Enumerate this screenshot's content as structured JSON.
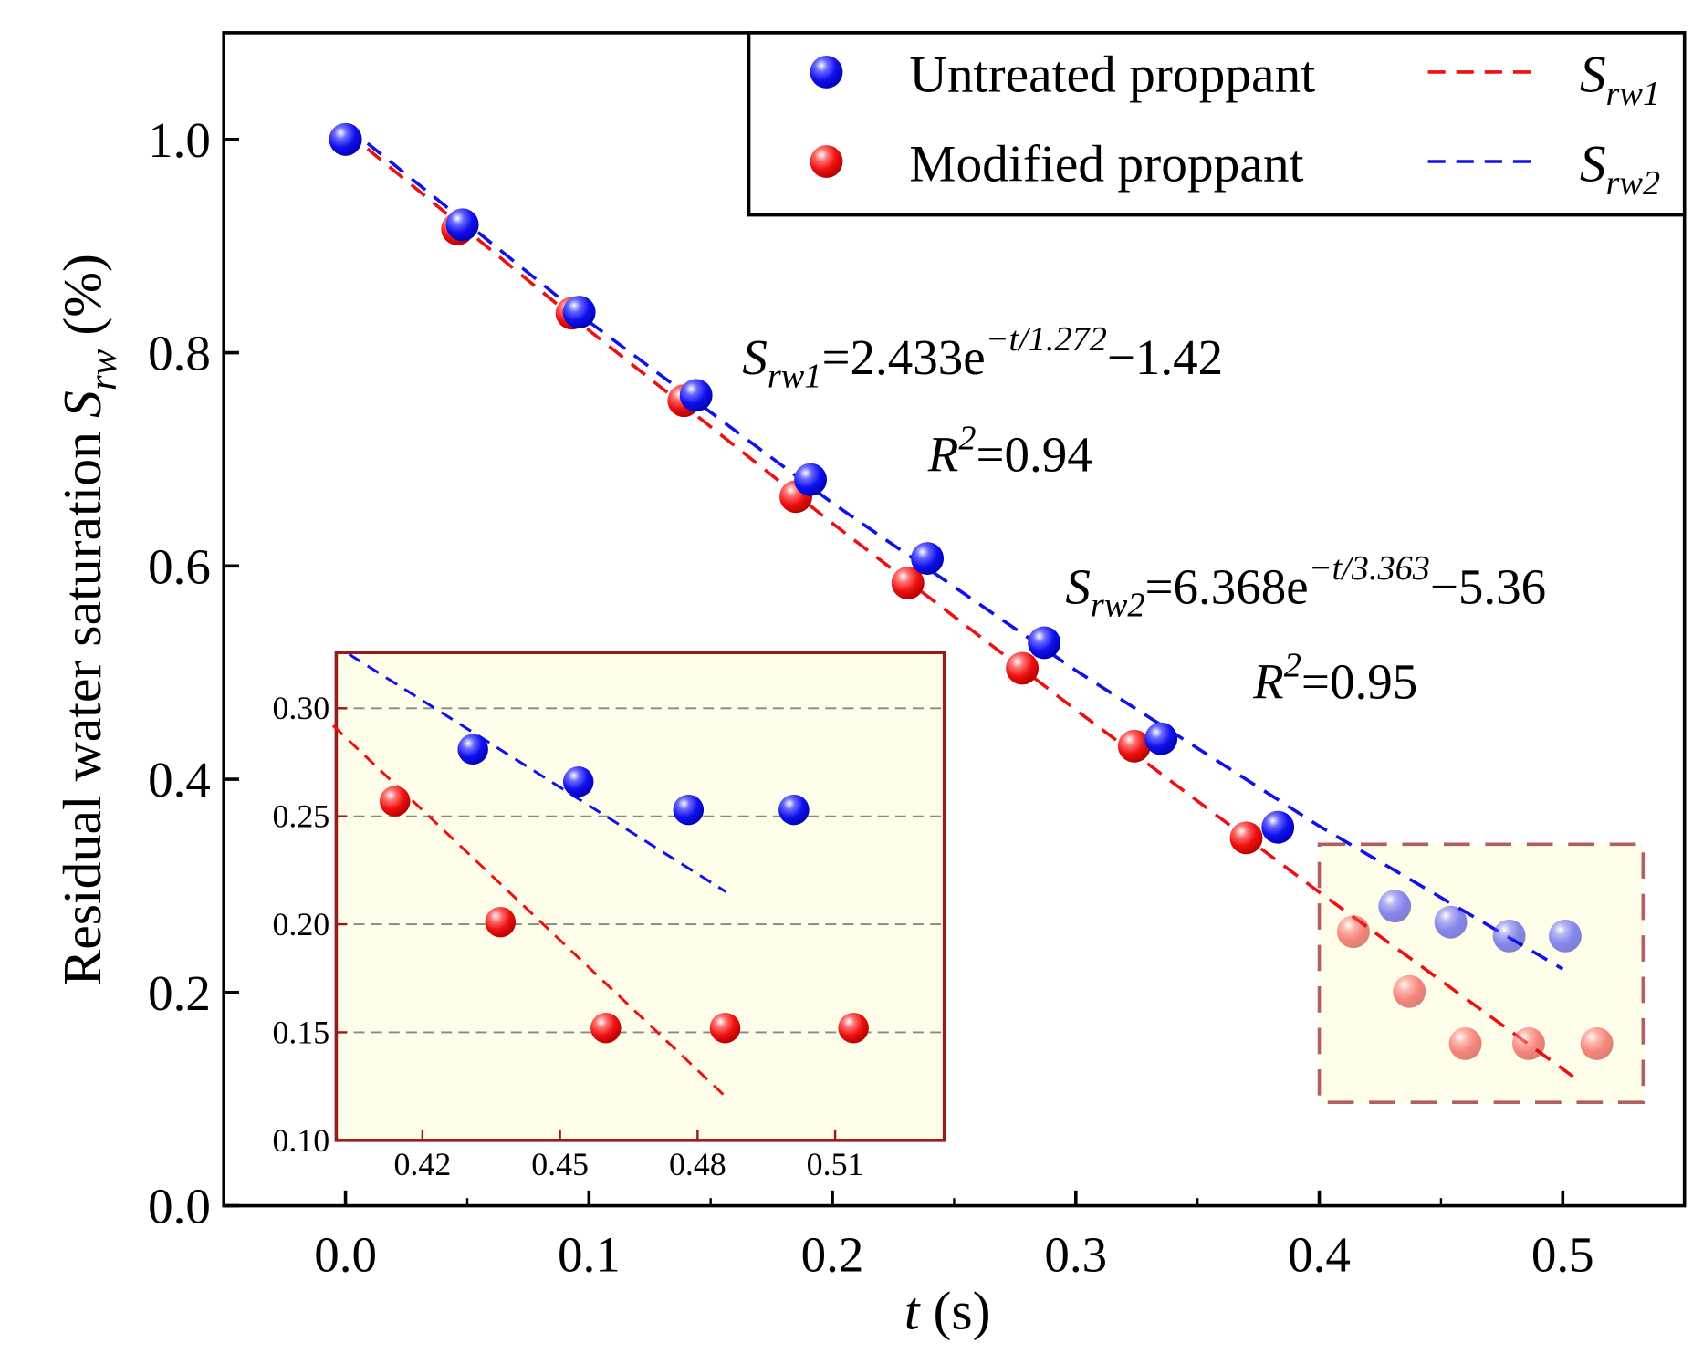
{
  "chart_data": {
    "type": "scatter",
    "xlabel": {
      "var": "t",
      "unit": " (s)"
    },
    "ylabel": {
      "main": "Residual water saturation ",
      "var": "S",
      "sub": "rw",
      "unit": " (%)"
    },
    "xlim": [
      -0.05,
      0.55
    ],
    "ylim": [
      0,
      1.1
    ],
    "xticks": [
      "0.0",
      "0.1",
      "0.2",
      "0.3",
      "0.4",
      "0.5"
    ],
    "yticks": [
      "0.0",
      "0.2",
      "0.4",
      "0.6",
      "0.8",
      "1.0"
    ],
    "series": [
      {
        "name": "Untreated proppant",
        "color": "#1010ee",
        "x": [
          0,
          0.048,
          0.096,
          0.144,
          0.191,
          0.239,
          0.287,
          0.335,
          0.383,
          0.431,
          0.454,
          0.478,
          0.501
        ],
        "y": [
          1.0,
          0.92,
          0.838,
          0.76,
          0.681,
          0.607,
          0.528,
          0.438,
          0.355,
          0.281,
          0.266,
          0.253,
          0.253
        ]
      },
      {
        "name": "Modified proppant",
        "color": "#ee1010",
        "x": [
          0,
          0.046,
          0.093,
          0.139,
          0.185,
          0.231,
          0.278,
          0.324,
          0.37,
          0.414,
          0.437,
          0.46,
          0.486,
          0.514
        ],
        "y": [
          1.0,
          0.916,
          0.837,
          0.755,
          0.665,
          0.584,
          0.504,
          0.431,
          0.345,
          0.257,
          0.201,
          0.152,
          0.152,
          0.152
        ]
      }
    ],
    "fits": [
      {
        "name": "S_rw1",
        "label": "S",
        "sub": "rw1",
        "color": "#ee1010",
        "x": [
          0,
          0.1,
          0.2,
          0.3,
          0.4,
          0.505
        ],
        "y": [
          1.008,
          0.821,
          0.64,
          0.465,
          0.294,
          0.12
        ]
      },
      {
        "name": "S_rw2",
        "label": "S",
        "sub": "rw2",
        "color": "#1010ee",
        "x": [
          0,
          0.1,
          0.2,
          0.3,
          0.4,
          0.5
        ],
        "y": [
          1.013,
          0.829,
          0.659,
          0.502,
          0.356,
          0.222
        ]
      }
    ],
    "annotations": {
      "eq1": {
        "S": "S",
        "sub": "rw1",
        "body": "=2.433e",
        "exp": "−t/1.272",
        "tail": "−1.42",
        "r": "R",
        "r_exp": "2",
        "r_val": "=0.94"
      },
      "eq2": {
        "S": "S",
        "sub": "rw2",
        "body": "=6.368e",
        "exp": "−t/3.363",
        "tail": "−5.36",
        "r": "R",
        "r_exp": "2",
        "r_val": "=0.95"
      }
    },
    "zoom_region": {
      "x": [
        0.4,
        0.533
      ],
      "y": [
        0.097,
        0.339
      ]
    },
    "inset": {
      "xlim": [
        0.4012,
        0.5338
      ],
      "ylim": [
        0.1,
        0.3258
      ],
      "xticks": [
        "0.42",
        "0.45",
        "0.48",
        "0.51"
      ],
      "yticks": [
        "0.10",
        "0.15",
        "0.20",
        "0.25",
        "0.30"
      ],
      "blue_line": {
        "x": [
          0.404,
          0.4862
        ],
        "y": [
          0.325,
          0.215
        ]
      },
      "red_line": {
        "x": [
          0.4005,
          0.4862
        ],
        "y": [
          0.292,
          0.12
        ]
      }
    },
    "legend": {
      "position": "top-right"
    }
  }
}
